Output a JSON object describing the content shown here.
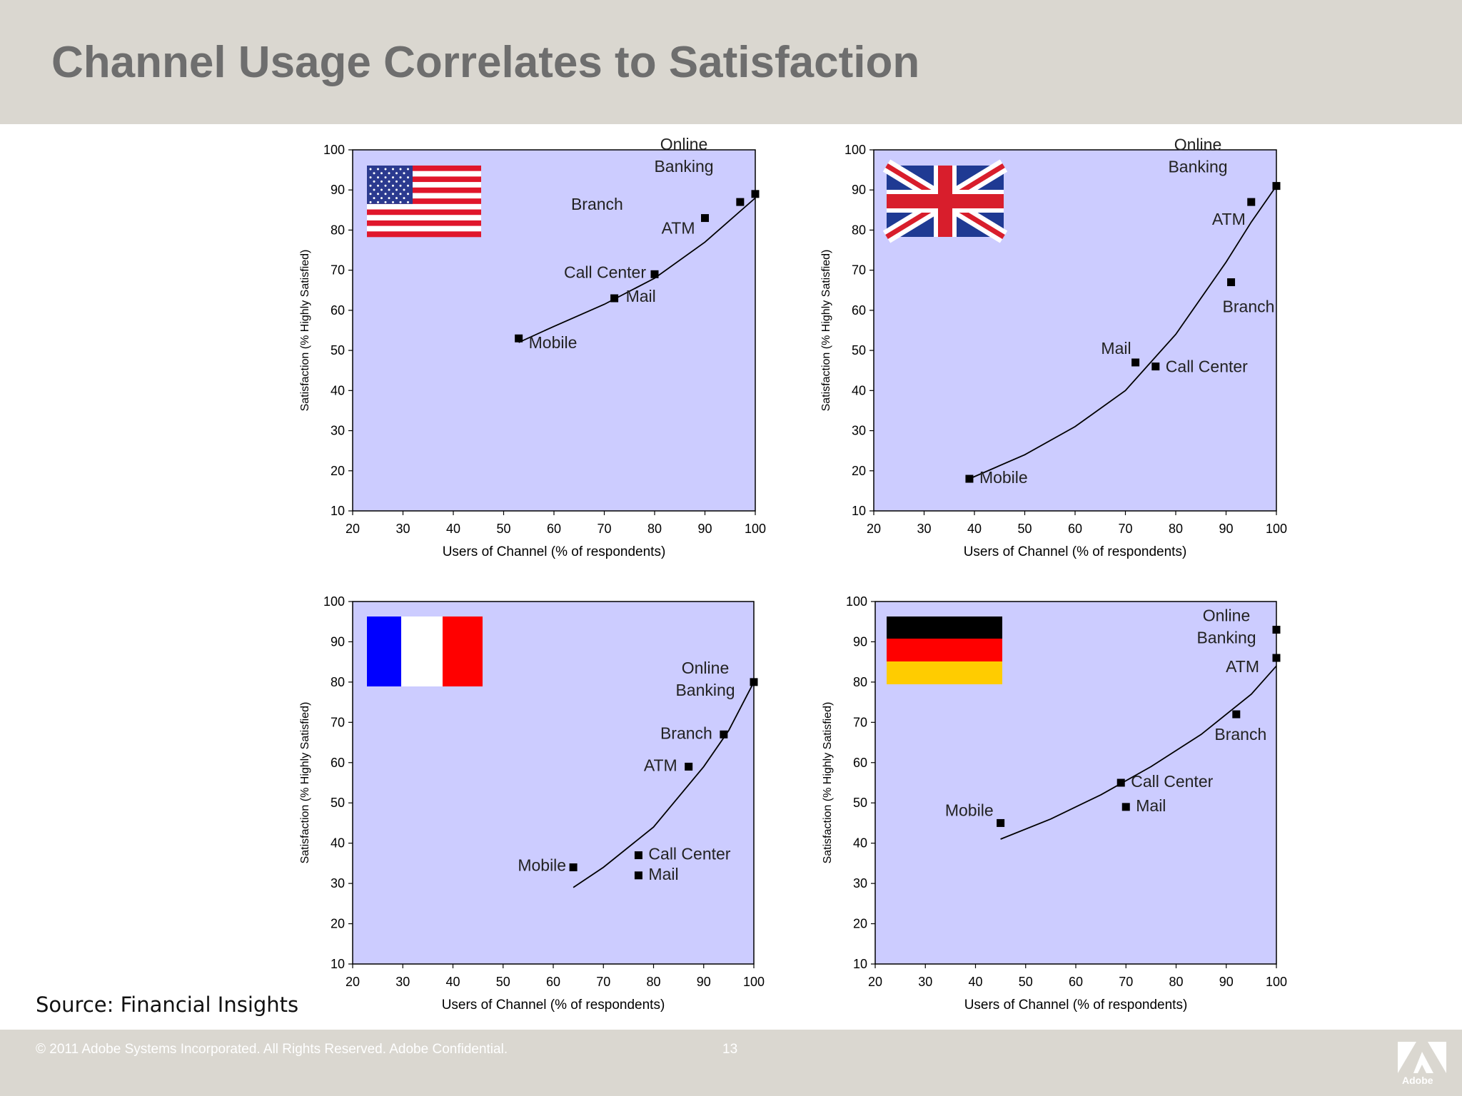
{
  "title": "Channel Usage Correlates to Satisfaction",
  "source": "Source: Financial Insights",
  "footer": {
    "copyright": "© 2011 Adobe Systems Incorporated.  All Rights Reserved.  Adobe Confidential.",
    "page_number": "13",
    "brand": "Adobe"
  },
  "colors": {
    "plot_bg": "#ccccff",
    "header_bg": "#dad7d0",
    "title": "#6e6e6e"
  },
  "chart_data": [
    {
      "type": "scatter",
      "flag": "usa-flag",
      "xlabel": "Users of Channel (% of respondents)",
      "ylabel": "Satisfaction (% Highly Satisfied)",
      "xlim": [
        20,
        100
      ],
      "ylim": [
        10,
        100
      ],
      "xticks": [
        20,
        30,
        40,
        50,
        60,
        70,
        80,
        90,
        100
      ],
      "yticks": [
        10,
        20,
        30,
        40,
        50,
        60,
        70,
        80,
        90,
        100
      ],
      "points": [
        {
          "label": "Mobile",
          "x": 53,
          "y": 53
        },
        {
          "label": "Mail",
          "x": 72,
          "y": 63
        },
        {
          "label": "Call Center",
          "x": 80,
          "y": 69
        },
        {
          "label": "ATM",
          "x": 90,
          "y": 83
        },
        {
          "label": "Branch",
          "x": 97,
          "y": 87
        },
        {
          "label": "Online Banking",
          "x": 100,
          "y": 89
        }
      ],
      "trend": [
        [
          53,
          52
        ],
        [
          60,
          56
        ],
        [
          70,
          61.5
        ],
        [
          80,
          68
        ],
        [
          90,
          77
        ],
        [
          100,
          88
        ]
      ]
    },
    {
      "type": "scatter",
      "flag": "uk-flag",
      "xlabel": "Users of Channel (% of respondents)",
      "ylabel": "Satisfaction (% Highly Satisfied)",
      "xlim": [
        20,
        100
      ],
      "ylim": [
        10,
        100
      ],
      "xticks": [
        20,
        30,
        40,
        50,
        60,
        70,
        80,
        90,
        100
      ],
      "yticks": [
        10,
        20,
        30,
        40,
        50,
        60,
        70,
        80,
        90,
        100
      ],
      "points": [
        {
          "label": "Mobile",
          "x": 39,
          "y": 18
        },
        {
          "label": "Mail",
          "x": 72,
          "y": 47
        },
        {
          "label": "Call Center",
          "x": 76,
          "y": 46
        },
        {
          "label": "Branch",
          "x": 91,
          "y": 67
        },
        {
          "label": "ATM",
          "x": 95,
          "y": 87
        },
        {
          "label": "Online Banking",
          "x": 100,
          "y": 91
        }
      ],
      "trend": [
        [
          39,
          18
        ],
        [
          50,
          24
        ],
        [
          60,
          31
        ],
        [
          70,
          40
        ],
        [
          80,
          54
        ],
        [
          90,
          72
        ],
        [
          95,
          82
        ],
        [
          100,
          91
        ]
      ]
    },
    {
      "type": "scatter",
      "flag": "france-flag",
      "xlabel": "Users of Channel (% of respondents)",
      "ylabel": "Satisfaction (% Highly Satisfied)",
      "xlim": [
        20,
        100
      ],
      "ylim": [
        10,
        100
      ],
      "xticks": [
        20,
        30,
        40,
        50,
        60,
        70,
        80,
        90,
        100
      ],
      "yticks": [
        10,
        20,
        30,
        40,
        50,
        60,
        70,
        80,
        90,
        100
      ],
      "points": [
        {
          "label": "Mobile",
          "x": 64,
          "y": 34
        },
        {
          "label": "Call Center",
          "x": 77,
          "y": 37
        },
        {
          "label": "Mail",
          "x": 77,
          "y": 32
        },
        {
          "label": "ATM",
          "x": 87,
          "y": 59
        },
        {
          "label": "Branch",
          "x": 94,
          "y": 67
        },
        {
          "label": "Online Banking",
          "x": 100,
          "y": 80
        }
      ],
      "trend": [
        [
          64,
          29
        ],
        [
          70,
          34
        ],
        [
          80,
          44
        ],
        [
          90,
          59
        ],
        [
          95,
          68
        ],
        [
          100,
          80
        ]
      ]
    },
    {
      "type": "scatter",
      "flag": "germany-flag",
      "xlabel": "Users of Channel (% of respondents)",
      "ylabel": "Satisfaction (% Highly Satisfied)",
      "xlim": [
        20,
        100
      ],
      "ylim": [
        10,
        100
      ],
      "xticks": [
        20,
        30,
        40,
        50,
        60,
        70,
        80,
        90,
        100
      ],
      "yticks": [
        10,
        20,
        30,
        40,
        50,
        60,
        70,
        80,
        90,
        100
      ],
      "points": [
        {
          "label": "Mobile",
          "x": 45,
          "y": 45
        },
        {
          "label": "Call Center",
          "x": 69,
          "y": 55
        },
        {
          "label": "Mail",
          "x": 70,
          "y": 49
        },
        {
          "label": "Branch",
          "x": 92,
          "y": 72
        },
        {
          "label": "ATM",
          "x": 100,
          "y": 86
        },
        {
          "label": "Online Banking",
          "x": 100,
          "y": 93
        }
      ],
      "trend": [
        [
          45,
          41
        ],
        [
          55,
          46
        ],
        [
          65,
          52
        ],
        [
          75,
          59
        ],
        [
          85,
          67
        ],
        [
          95,
          77
        ],
        [
          100,
          84
        ]
      ]
    }
  ]
}
